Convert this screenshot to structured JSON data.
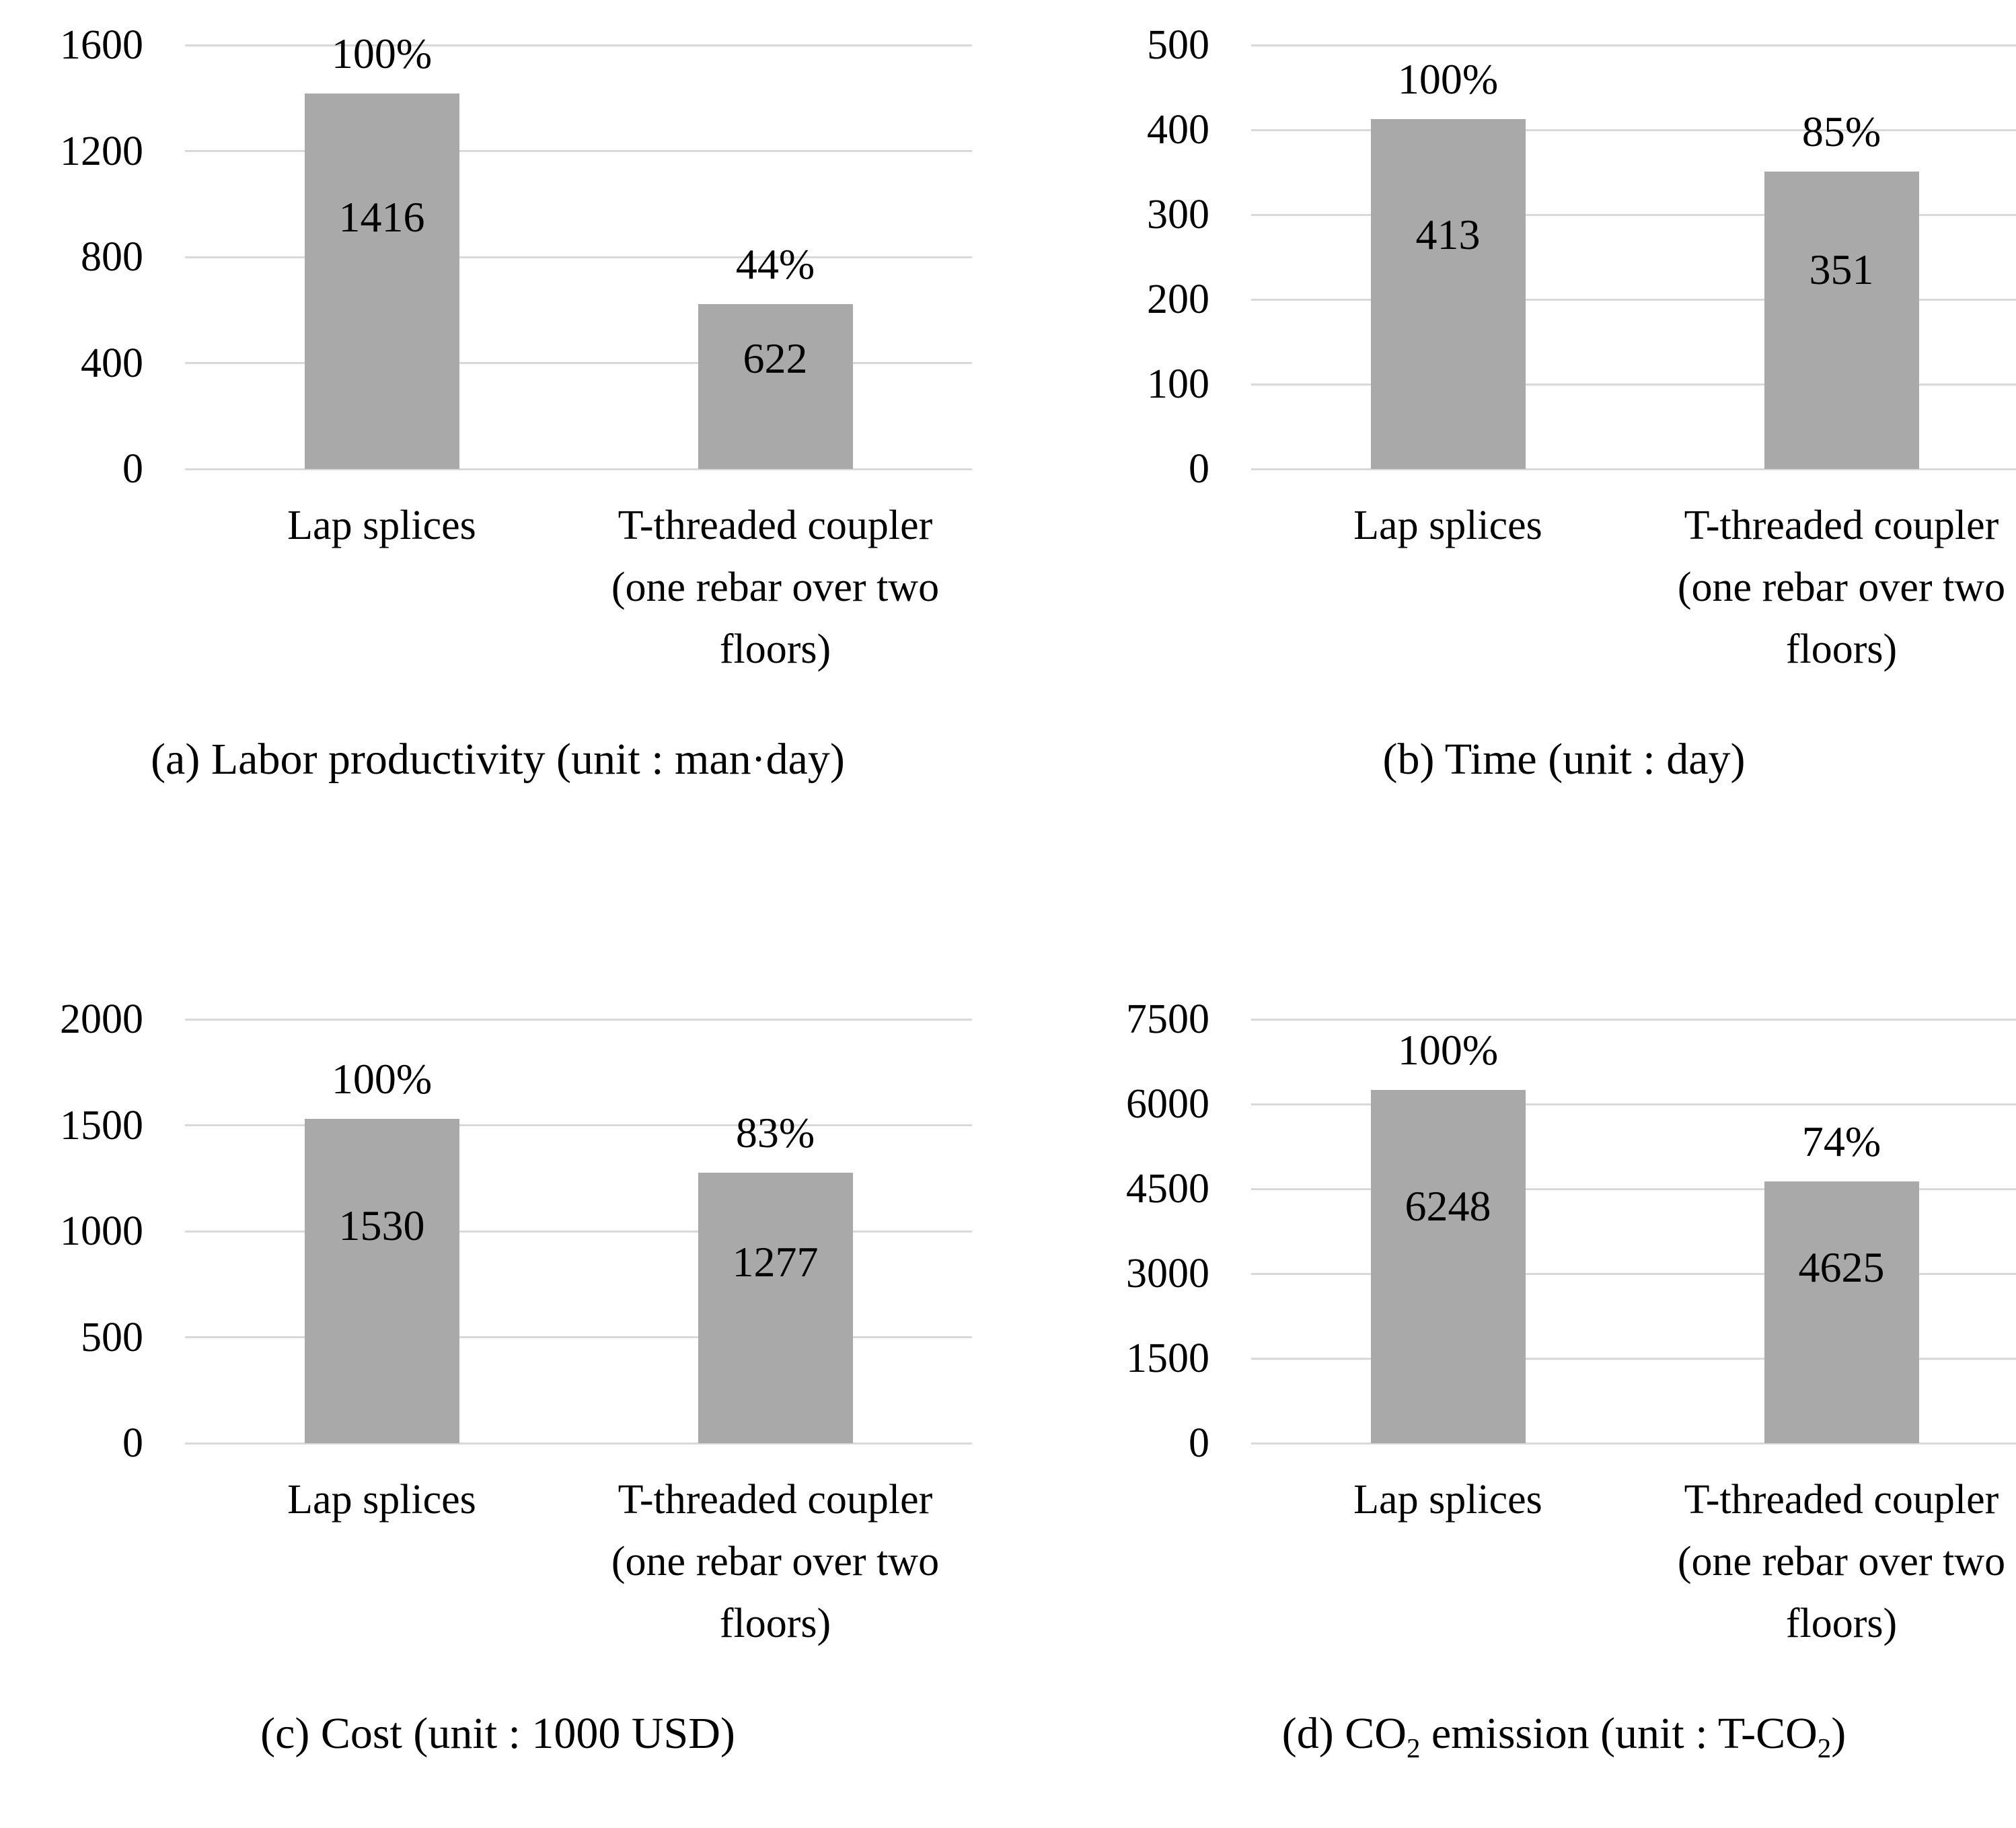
{
  "figure": {
    "description": "Four bar charts comparing Lap splices versus T-threaded coupler (one rebar over two floors)",
    "background_color": "#ffffff",
    "bar_fill_color": "#a9a9a9",
    "gridline_color": "#d9d9d9",
    "text_color": "#000000"
  },
  "chart_data": [
    {
      "id": "a",
      "type": "bar",
      "title": "(a) Labor productivity (unit : man·day)",
      "caption_parts": [
        {
          "t": "(a) Labor productivity (unit : man·day)"
        }
      ],
      "categories": [
        "Lap splices",
        "T-threaded coupler\n(one rebar over two\nfloors)"
      ],
      "values": [
        1416,
        622
      ],
      "value_labels": [
        "1416",
        "622"
      ],
      "percent_labels": [
        "100%",
        "44%"
      ],
      "ylim": [
        0,
        1600
      ],
      "yticks": [
        0,
        400,
        800,
        1200,
        1600
      ],
      "xlabel": "",
      "ylabel": "",
      "grid": true,
      "legend": "none"
    },
    {
      "id": "b",
      "type": "bar",
      "title": "(b) Time (unit : day)",
      "caption_parts": [
        {
          "t": "(b) Time (unit : day)"
        }
      ],
      "categories": [
        "Lap splices",
        "T-threaded coupler\n(one rebar over two\nfloors)"
      ],
      "values": [
        413,
        351
      ],
      "value_labels": [
        "413",
        "351"
      ],
      "percent_labels": [
        "100%",
        "85%"
      ],
      "ylim": [
        0,
        500
      ],
      "yticks": [
        0,
        100,
        200,
        300,
        400,
        500
      ],
      "xlabel": "",
      "ylabel": "",
      "grid": true,
      "legend": "none"
    },
    {
      "id": "c",
      "type": "bar",
      "title": "(c) Cost (unit : 1000 USD)",
      "caption_parts": [
        {
          "t": "(c) Cost (unit : 1000 USD)"
        }
      ],
      "categories": [
        "Lap splices",
        "T-threaded coupler\n(one rebar over two\nfloors)"
      ],
      "values": [
        1530,
        1277
      ],
      "value_labels": [
        "1530",
        "1277"
      ],
      "percent_labels": [
        "100%",
        "83%"
      ],
      "ylim": [
        0,
        2000
      ],
      "yticks": [
        0,
        500,
        1000,
        1500,
        2000
      ],
      "xlabel": "",
      "ylabel": "",
      "grid": true,
      "legend": "none"
    },
    {
      "id": "d",
      "type": "bar",
      "title": "(d) CO2 emission (unit : T-CO2)",
      "caption_parts": [
        {
          "t": "(d) CO"
        },
        {
          "t": "2",
          "sub": true
        },
        {
          "t": " emission (unit : T-CO"
        },
        {
          "t": "2",
          "sub": true
        },
        {
          "t": ")"
        }
      ],
      "categories": [
        "Lap splices",
        "T-threaded coupler\n(one rebar over two\nfloors)"
      ],
      "values": [
        6248,
        4625
      ],
      "value_labels": [
        "6248",
        "4625"
      ],
      "percent_labels": [
        "100%",
        "74%"
      ],
      "ylim": [
        0,
        7500
      ],
      "yticks": [
        0,
        1500,
        3000,
        4500,
        6000,
        7500
      ],
      "xlabel": "",
      "ylabel": "",
      "grid": true,
      "legend": "none"
    }
  ]
}
